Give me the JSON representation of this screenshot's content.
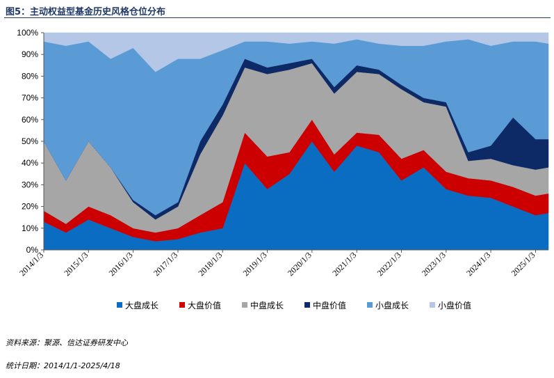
{
  "figure": {
    "title": "图5：主动权益型基金历史风格仓位分布"
  },
  "chart_data": {
    "type": "area",
    "stacked": true,
    "title": "",
    "xlabel": "",
    "ylabel": "",
    "ylim": [
      0,
      100
    ],
    "y_ticks": [
      "0%",
      "10%",
      "20%",
      "30%",
      "40%",
      "50%",
      "60%",
      "70%",
      "80%",
      "90%",
      "100%"
    ],
    "x_ticks": [
      "2014/1/3",
      "2015/1/3",
      "2016/1/3",
      "2017/1/3",
      "2018/1/3",
      "2019/1/3",
      "2020/1/3",
      "2021/1/3",
      "2022/1/3",
      "2023/1/3",
      "2024/1/3",
      "2025/1/3"
    ],
    "x_range": [
      "2014/1/3",
      "2025/4/18"
    ],
    "grid": false,
    "legend_position": "bottom",
    "x": [
      "2014/1/3",
      "2014/7/3",
      "2015/1/3",
      "2015/7/3",
      "2016/1/3",
      "2016/7/3",
      "2017/1/3",
      "2017/7/3",
      "2018/1/3",
      "2018/7/3",
      "2019/1/3",
      "2019/7/3",
      "2020/1/3",
      "2020/7/3",
      "2021/1/3",
      "2021/7/3",
      "2022/1/3",
      "2022/7/3",
      "2023/1/3",
      "2023/7/3",
      "2024/1/3",
      "2024/7/3",
      "2025/1/3",
      "2025/4/18"
    ],
    "series": [
      {
        "name": "大盘成长",
        "color": "#0b6dc1",
        "values": [
          13,
          8,
          14,
          10,
          6,
          4,
          5,
          8,
          10,
          40,
          28,
          35,
          50,
          36,
          48,
          45,
          32,
          38,
          28,
          25,
          24,
          20,
          16,
          17
        ]
      },
      {
        "name": "大盘价值",
        "color": "#cc0000",
        "values": [
          5,
          4,
          6,
          6,
          4,
          4,
          5,
          8,
          12,
          14,
          15,
          10,
          10,
          8,
          6,
          8,
          10,
          8,
          8,
          8,
          8,
          9,
          9,
          9
        ]
      },
      {
        "name": "中盘成长",
        "color": "#a6a6a6",
        "values": [
          32,
          20,
          30,
          22,
          12,
          6,
          10,
          28,
          40,
          30,
          38,
          38,
          26,
          28,
          28,
          28,
          32,
          22,
          30,
          8,
          10,
          10,
          12,
          12
        ]
      },
      {
        "name": "中盘价值",
        "color": "#0e2a66",
        "values": [
          0,
          0,
          0,
          0,
          1,
          2,
          2,
          6,
          5,
          4,
          3,
          3,
          2,
          3,
          3,
          2,
          2,
          2,
          2,
          4,
          6,
          22,
          14,
          13
        ]
      },
      {
        "name": "小盘成长",
        "color": "#5b9bd5",
        "values": [
          46,
          62,
          46,
          50,
          70,
          66,
          66,
          38,
          25,
          8,
          12,
          9,
          8,
          20,
          12,
          12,
          18,
          24,
          28,
          52,
          46,
          35,
          45,
          44
        ]
      },
      {
        "name": "小盘价值",
        "color": "#b4c7e7",
        "values": [
          4,
          6,
          4,
          12,
          7,
          18,
          12,
          12,
          8,
          4,
          4,
          5,
          4,
          5,
          3,
          5,
          6,
          6,
          4,
          3,
          6,
          4,
          4,
          5
        ]
      }
    ]
  },
  "notes": {
    "source": "资料来源：聚源、信达证券研发中心",
    "period": "统计日期：2014/1/1-2025/4/18"
  }
}
